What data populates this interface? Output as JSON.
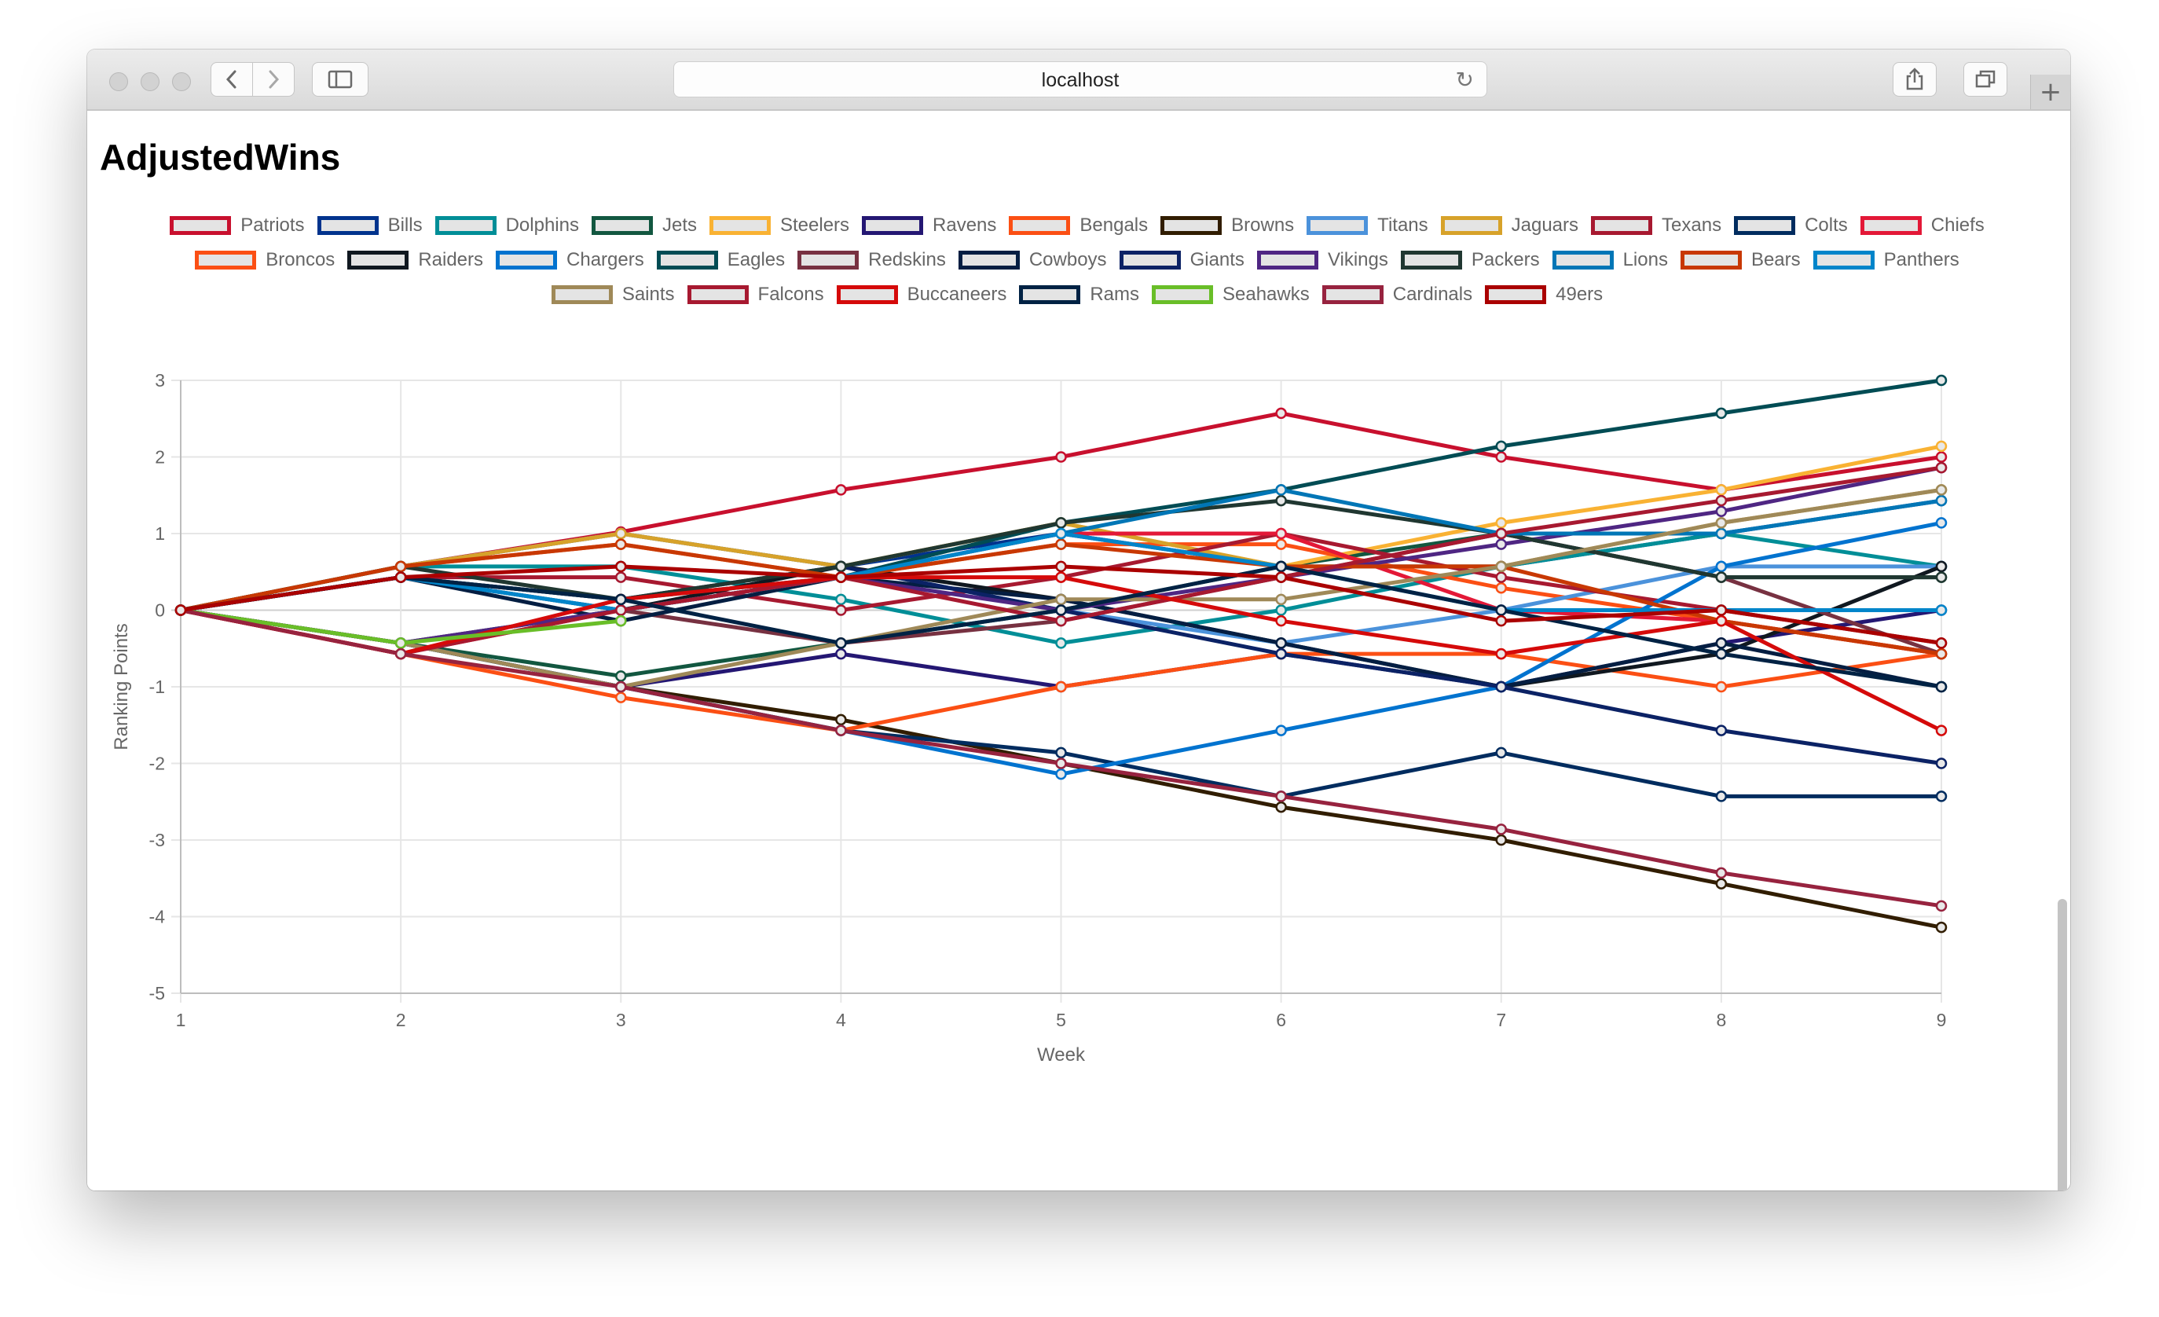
{
  "browser": {
    "url": "localhost",
    "back_icon": "chevron-left-icon",
    "forward_icon": "chevron-right-icon",
    "sidebar_icon": "sidebar-icon",
    "reload_icon": "reload-icon",
    "share_icon": "share-icon",
    "tabs_icon": "tabs-icon",
    "new_tab_icon": "plus-icon"
  },
  "page": {
    "title": "AdjustedWins"
  },
  "chart_data": {
    "type": "line",
    "title": "",
    "xlabel": "Week",
    "ylabel": "Ranking Points",
    "x": [
      1,
      2,
      3,
      4,
      5,
      6,
      7,
      8,
      9
    ],
    "xlim": [
      1,
      9
    ],
    "ylim": [
      -5,
      3
    ],
    "yticks": [
      3,
      2,
      1,
      0,
      -1,
      -2,
      -3,
      -4,
      -5
    ],
    "grid": true,
    "legend_position": "top",
    "series": [
      {
        "name": "Patriots",
        "color": "#C8102E",
        "values": [
          0,
          0.57,
          1.02,
          1.57,
          2.0,
          2.57,
          2.0,
          1.57,
          2.0
        ]
      },
      {
        "name": "Bills",
        "color": "#00338D",
        "values": [
          0,
          0.57,
          1.0,
          0.57,
          1.0,
          0.57,
          0.57,
          1.0,
          1.43
        ]
      },
      {
        "name": "Dolphins",
        "color": "#008E97",
        "values": [
          0,
          0.57,
          0.57,
          0.14,
          -0.43,
          0,
          0.57,
          1.0,
          0.57
        ]
      },
      {
        "name": "Jets",
        "color": "#125740",
        "values": [
          0,
          -0.43,
          -0.86,
          -0.43,
          0,
          0.57,
          1.0,
          0.43,
          0.43
        ]
      },
      {
        "name": "Steelers",
        "color": "#F9B233",
        "values": [
          0,
          0.57,
          1.0,
          0.57,
          1.14,
          0.57,
          1.14,
          1.57,
          2.14
        ]
      },
      {
        "name": "Ravens",
        "color": "#241773",
        "values": [
          0,
          -0.43,
          -1.0,
          -0.57,
          -1.0,
          -0.57,
          -1.0,
          -0.43,
          0
        ]
      },
      {
        "name": "Bengals",
        "color": "#FB4F14",
        "values": [
          0,
          0.57,
          0.86,
          0.43,
          0.86,
          0.86,
          0.29,
          -0.14,
          -0.57
        ]
      },
      {
        "name": "Browns",
        "color": "#311D00",
        "values": [
          0,
          -0.43,
          -1.0,
          -1.43,
          -2.0,
          -2.57,
          -3.0,
          -3.57,
          -4.14
        ]
      },
      {
        "name": "Titans",
        "color": "#4B92DB",
        "values": [
          0,
          0.57,
          1.0,
          0.57,
          0,
          -0.43,
          0,
          0.57,
          0.57
        ]
      },
      {
        "name": "Jaguars",
        "color": "#D7A22A",
        "values": [
          0,
          0.57,
          1.0,
          0.57,
          1.14,
          0.57,
          0.57,
          1.14,
          1.57
        ]
      },
      {
        "name": "Texans",
        "color": "#A71930",
        "values": [
          0,
          0.43,
          0.43,
          0,
          0.43,
          1.0,
          0.43,
          0,
          -0.43
        ]
      },
      {
        "name": "Colts",
        "color": "#002C5F",
        "values": [
          0,
          -0.43,
          -1.0,
          -1.57,
          -1.86,
          -2.43,
          -1.86,
          -2.43,
          -2.43
        ]
      },
      {
        "name": "Chiefs",
        "color": "#E31837",
        "values": [
          0,
          -0.57,
          0,
          0.43,
          1.0,
          1.0,
          0,
          -0.14,
          -0.57
        ]
      },
      {
        "name": "Broncos",
        "color": "#FB4F14",
        "values": [
          0,
          -0.57,
          -1.14,
          -1.57,
          -1.0,
          -0.57,
          -0.57,
          -1.0,
          -0.57
        ]
      },
      {
        "name": "Raiders",
        "color": "#101820",
        "values": [
          0,
          -0.43,
          0,
          0.57,
          0.14,
          -0.43,
          -1.0,
          -0.57,
          0.57
        ]
      },
      {
        "name": "Chargers",
        "color": "#0073CF",
        "values": [
          0,
          -0.43,
          -1.0,
          -1.57,
          -2.14,
          -1.57,
          -1.0,
          0.57,
          1.14
        ]
      },
      {
        "name": "Eagles",
        "color": "#004C54",
        "values": [
          0,
          0.43,
          0.14,
          0.43,
          1.14,
          1.57,
          2.14,
          2.57,
          3.0
        ]
      },
      {
        "name": "Redskins",
        "color": "#773141",
        "values": [
          0,
          0.43,
          0,
          -0.43,
          -0.14,
          0.43,
          1.0,
          0.43,
          -0.57
        ]
      },
      {
        "name": "Cowboys",
        "color": "#041E42",
        "values": [
          0,
          0.43,
          -0.14,
          0.43,
          0.14,
          -0.43,
          -1.0,
          -0.43,
          -1.0
        ]
      },
      {
        "name": "Giants",
        "color": "#0B2265",
        "values": [
          0,
          0.43,
          0.14,
          0.57,
          0,
          -0.57,
          -1.0,
          -1.57,
          -2.0
        ]
      },
      {
        "name": "Vikings",
        "color": "#4F2683",
        "values": [
          0,
          -0.43,
          0,
          0.43,
          0,
          0.43,
          0.86,
          1.29,
          1.86
        ]
      },
      {
        "name": "Packers",
        "color": "#203731",
        "values": [
          0,
          0.57,
          0.14,
          0.57,
          1.14,
          1.43,
          1.0,
          0.43,
          0.43
        ]
      },
      {
        "name": "Lions",
        "color": "#0076B6",
        "values": [
          0,
          0.43,
          0,
          0.43,
          1.0,
          1.57,
          1.0,
          1.0,
          1.43
        ]
      },
      {
        "name": "Bears",
        "color": "#C83803",
        "values": [
          0,
          0.57,
          0.86,
          0.43,
          0.86,
          0.57,
          0.57,
          -0.14,
          -0.57
        ]
      },
      {
        "name": "Panthers",
        "color": "#0085CA",
        "values": [
          0,
          0.43,
          0,
          0.43,
          1.0,
          0.57,
          0,
          0,
          0
        ]
      },
      {
        "name": "Saints",
        "color": "#9F8958",
        "values": [
          0,
          -0.43,
          -1.0,
          -0.43,
          0.14,
          0.14,
          0.57,
          1.14,
          1.57
        ]
      },
      {
        "name": "Falcons",
        "color": "#A71930",
        "values": [
          0,
          -0.57,
          0,
          0.43,
          -0.14,
          0.43,
          1.0,
          1.43,
          1.86
        ]
      },
      {
        "name": "Buccaneers",
        "color": "#D50A0A",
        "values": [
          0,
          -0.57,
          0.14,
          0.43,
          0.43,
          -0.14,
          -0.57,
          -0.14,
          -1.57
        ]
      },
      {
        "name": "Rams",
        "color": "#002244",
        "values": [
          0,
          0.43,
          0.14,
          -0.43,
          0,
          0.57,
          0,
          -0.57,
          -1.0
        ]
      },
      {
        "name": "Seahawks",
        "color": "#69BE28",
        "values": [
          0,
          -0.43,
          -0.14,
          null,
          null,
          null,
          null,
          null,
          null
        ]
      },
      {
        "name": "Cardinals",
        "color": "#97233F",
        "values": [
          0,
          -0.57,
          -1.0,
          -1.57,
          -2.0,
          -2.43,
          -2.86,
          -3.43,
          -3.86
        ]
      },
      {
        "name": "49ers",
        "color": "#AA0000",
        "values": [
          0,
          0.43,
          0.57,
          0.43,
          0.57,
          0.43,
          -0.14,
          0,
          -0.43
        ]
      }
    ]
  }
}
